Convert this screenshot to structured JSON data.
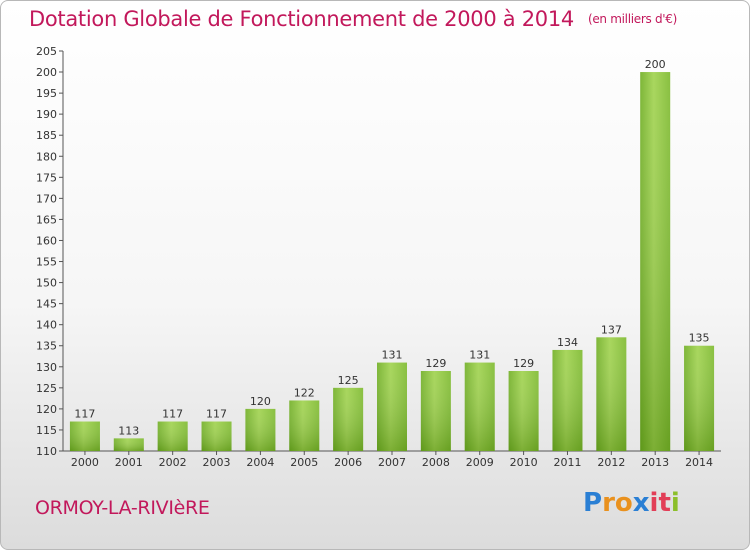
{
  "title": "Dotation Globale de Fonctionnement de 2000 à 2014",
  "unit": "(en milliers d'€)",
  "city": "ORMOY-LA-RIVIèRE",
  "logo": {
    "text": "Proxiti",
    "letters": [
      "P",
      "ro",
      "x",
      "it",
      "i"
    ]
  },
  "colors": {
    "accent": "#c2185b",
    "bar_light": "#a6d95a",
    "bar_dark": "#5f9c1a",
    "axis": "#555555"
  },
  "chart_data": {
    "type": "bar",
    "title": "Dotation Globale de Fonctionnement de 2000 à 2014",
    "xlabel": "",
    "ylabel": "",
    "categories": [
      "2000",
      "2001",
      "2002",
      "2003",
      "2004",
      "2005",
      "2006",
      "2007",
      "2008",
      "2009",
      "2010",
      "2011",
      "2012",
      "2013",
      "2014"
    ],
    "values": [
      117,
      113,
      117,
      117,
      120,
      122,
      125,
      131,
      129,
      131,
      129,
      134,
      137,
      200,
      135
    ],
    "ylim": [
      110,
      205
    ],
    "yticks": [
      110,
      115,
      120,
      125,
      130,
      135,
      140,
      145,
      150,
      155,
      160,
      165,
      170,
      175,
      180,
      185,
      190,
      195,
      200,
      205
    ],
    "grid": false,
    "legend": "none"
  }
}
